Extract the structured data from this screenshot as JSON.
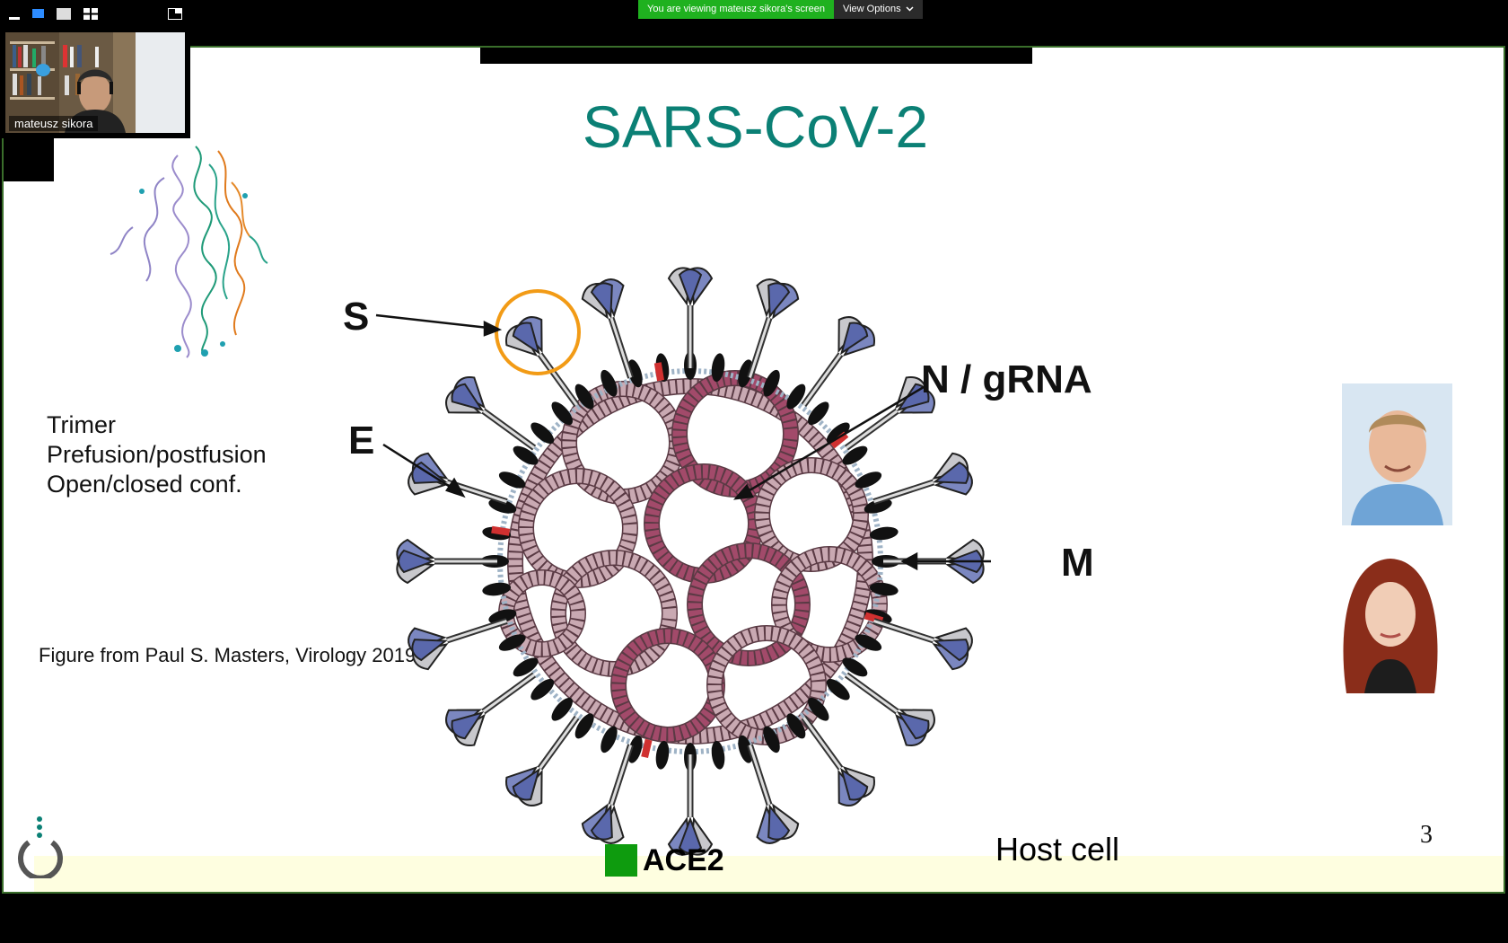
{
  "window_controls": {
    "icons": [
      "minimize-icon",
      "speaker-view-icon",
      "single-view-icon",
      "gallery-view-icon",
      "exit-fullscreen-icon"
    ]
  },
  "banner": {
    "sharing_text": "You are viewing mateusz sikora's screen",
    "view_options_label": "View Options"
  },
  "video_tile": {
    "participant_name": "mateusz sikora"
  },
  "slide": {
    "title": "SARS-CoV-2",
    "notes": [
      "Trimer",
      "Prefusion/postfusion",
      "Open/closed conf."
    ],
    "credit": "Figure from Paul S. Masters, Virology 2019",
    "diagram_labels": {
      "s": "S",
      "e": "E",
      "n": "N / gRNA",
      "m": "M"
    },
    "ace2_label": "ACE2",
    "host_label": "Host cell",
    "page_number": "3"
  },
  "colors": {
    "title": "#0b8075",
    "banner_green": "#1fb11f",
    "slide_border": "#3a6e2b",
    "ace2_square": "#0e9b0e",
    "footer_band": "#fefee0",
    "highlight_circle": "#f29b16"
  }
}
